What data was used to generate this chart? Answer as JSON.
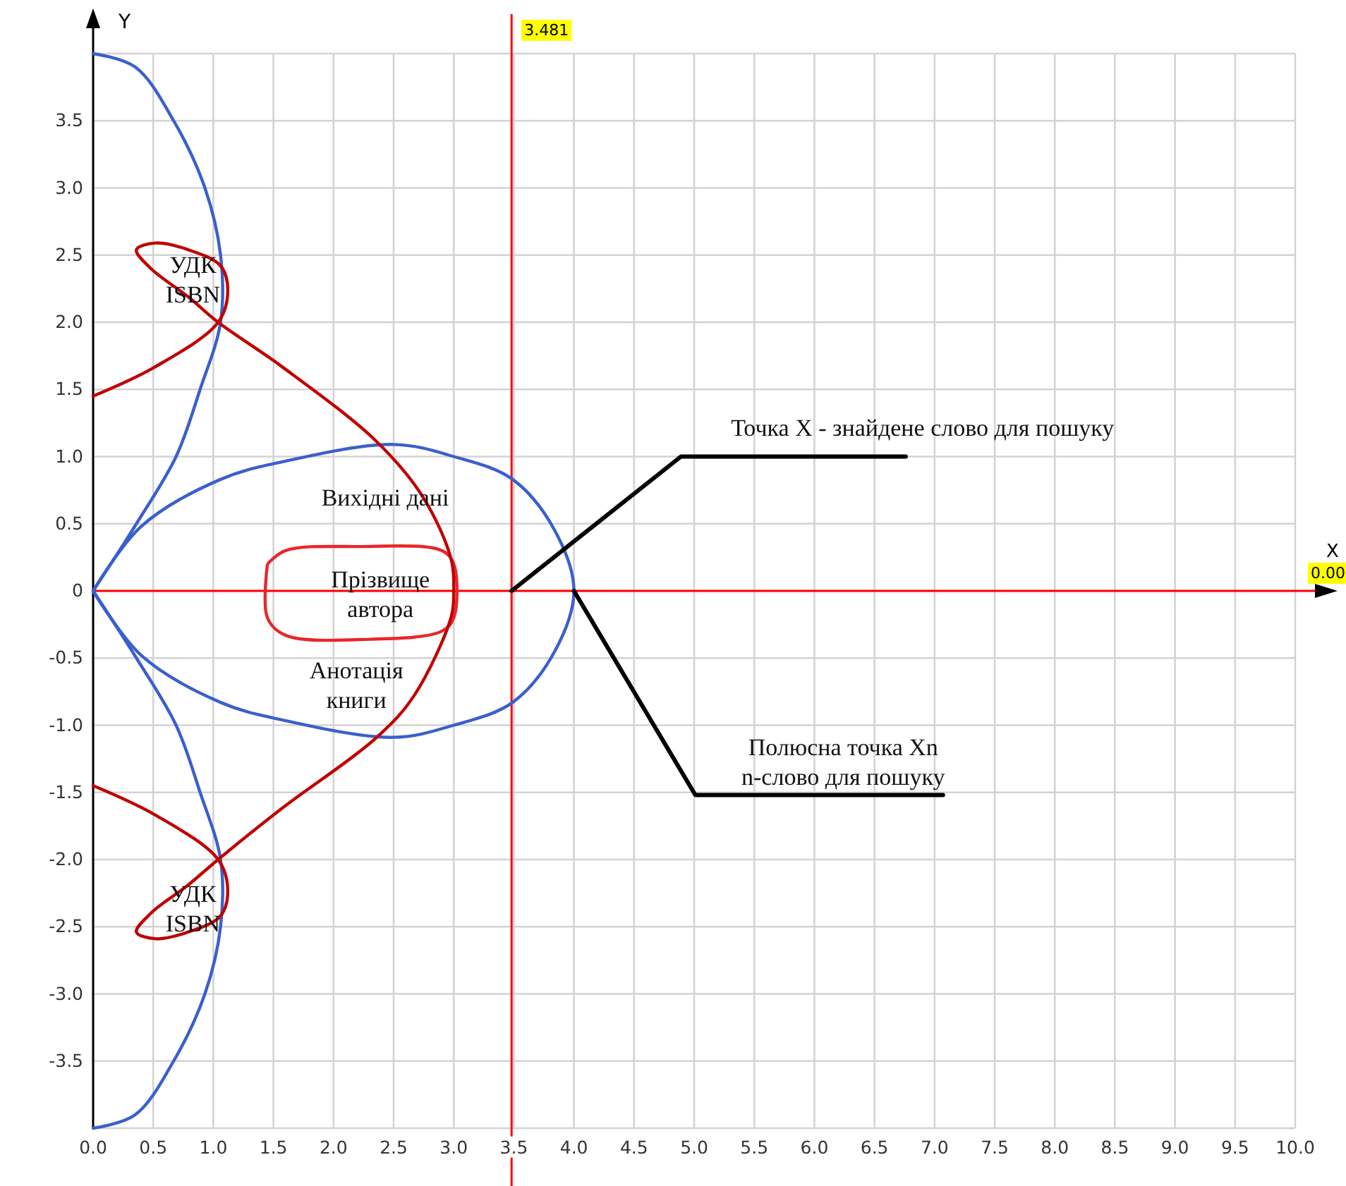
{
  "chart_data": {
    "type": "line",
    "xlabel": "X",
    "ylabel": "Y",
    "xlim": [
      0,
      10
    ],
    "ylim": [
      -4,
      4
    ],
    "xticks": [
      {
        "value": 0,
        "label": "0.0"
      },
      0.5,
      {
        "value": 1,
        "label": "1.0"
      },
      1.5,
      {
        "value": 2,
        "label": "2.0"
      },
      2.5,
      {
        "value": 3,
        "label": "3.0"
      },
      3.5,
      {
        "value": 4,
        "label": "4.0"
      },
      4.5,
      {
        "value": 5,
        "label": "5.0"
      },
      5.5,
      {
        "value": 6,
        "label": "6.0"
      },
      6.5,
      {
        "value": 7,
        "label": "7.0"
      },
      7.5,
      {
        "value": 8,
        "label": "8.0"
      },
      8.5,
      {
        "value": 9,
        "label": "9.0"
      },
      9.5,
      {
        "value": 10,
        "label": "10.0"
      }
    ],
    "yticks": [
      {
        "value": -4,
        "label": null
      },
      -3.5,
      {
        "value": -3,
        "label": "-3.0"
      },
      -2.5,
      {
        "value": -2,
        "label": "-2.0"
      },
      -1.5,
      {
        "value": -1,
        "label": "-1.0"
      },
      -0.5,
      0,
      0.5,
      {
        "value": 1,
        "label": "1.0"
      },
      1.5,
      {
        "value": 2,
        "label": "2.0"
      },
      2.5,
      {
        "value": 3,
        "label": "3.0"
      },
      3.5,
      {
        "value": 4,
        "label": null
      }
    ],
    "grid": true,
    "marker": "none",
    "line_style": "solid",
    "series": [
      {
        "color": "#3a5fcd",
        "x": [
          0,
          0.35,
          0.67,
          0.93,
          1.06,
          1.06,
          0.89,
          0.69,
          0.36,
          0
        ],
        "values": [
          4,
          3.9,
          3.5,
          3,
          2.5,
          2,
          1.5,
          1,
          0.5,
          0
        ]
      },
      {
        "color": "#3a5fcd",
        "x": [
          0,
          0.36,
          0.69,
          0.89,
          1.06,
          1.06,
          0.93,
          0.67,
          0.35,
          0
        ],
        "values": [
          0,
          -0.5,
          -1,
          -1.5,
          -2,
          -2.5,
          -3,
          -3.5,
          -3.9,
          -4
        ]
      },
      {
        "color": "#c00000",
        "x": [
          0,
          0.52,
          1.04,
          1.12,
          1.06,
          0.79,
          0.52,
          0.36,
          0.48,
          0.79,
          1.04,
          1.57,
          2.36,
          2.75,
          2.98,
          3,
          2.98,
          2.67,
          2.36,
          1.57,
          1.04,
          0.79,
          0.48,
          0.36,
          0.52,
          0.79,
          1.06,
          1.12,
          1.04,
          0.52,
          0
        ],
        "values": [
          1.45,
          1.67,
          2,
          2.23,
          2.42,
          2.54,
          2.59,
          2.54,
          2.4,
          2.19,
          2,
          1.67,
          1.11,
          0.69,
          0.23,
          0,
          -0.19,
          -0.78,
          -1.09,
          -1.62,
          -2,
          -2.19,
          -2.4,
          -2.54,
          -2.59,
          -2.54,
          -2.42,
          -2.23,
          -2,
          -1.67,
          -1.45
        ]
      },
      {
        "color": "#000000",
        "x": [
          3.481,
          4.89,
          6.76
        ],
        "values": [
          0,
          1,
          1
        ]
      },
      {
        "color": "#000000",
        "x": [
          4,
          5.01,
          7.07
        ],
        "values": [
          0,
          -1.52,
          -1.52
        ]
      }
    ],
    "ref_lines": [
      {
        "axis": "x",
        "value": 3.481,
        "label": "3.481",
        "color": "#ff0000"
      },
      {
        "axis": "y",
        "value": 0,
        "label": "0.00",
        "color": "#ff0000"
      }
    ],
    "annotations": [
      "Точка Х - знайдене слово для пошуку",
      "Полюсна точка Хn\nn-слово для пошуку",
      "Вихідні дані",
      "Прізвище\nавтора",
      "Анотація\nкниги",
      "УДК\nISBN",
      "УДК\nISBN"
    ]
  }
}
